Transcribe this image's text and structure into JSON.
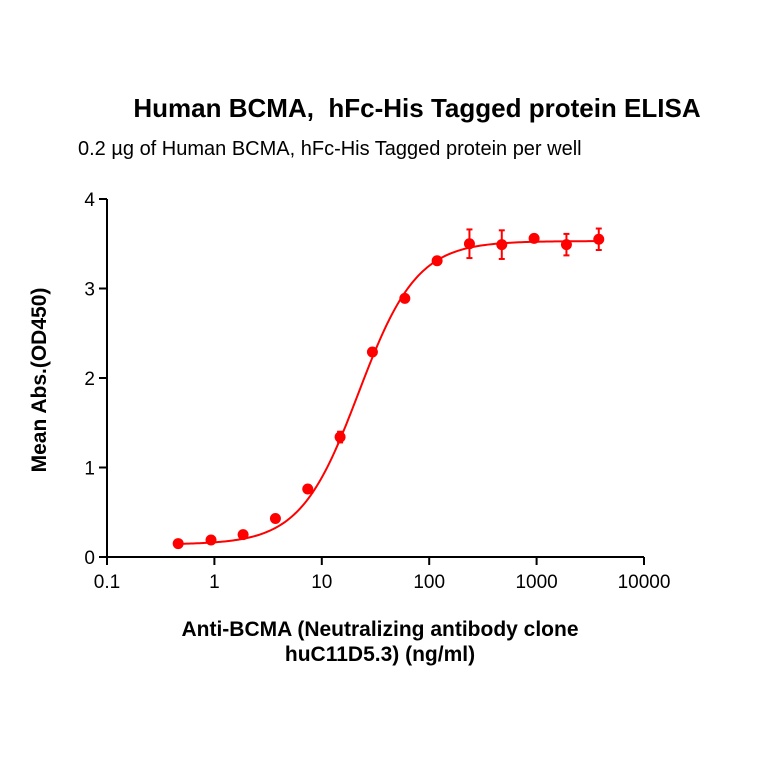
{
  "chart": {
    "title": "Human BCMA,  hFc-His Tagged protein ELISA",
    "subtitle": "0.2 µg of Human BCMA, hFc-His Tagged protein per well",
    "xlabel_line1": "Anti-BCMA (Neutralizing antibody clone",
    "xlabel_line2": "huC11D5.3) (ng/ml)",
    "ylabel": "Mean Abs.(OD450)"
  },
  "chart_data": {
    "type": "scatter",
    "title": "Human BCMA,  hFc-His Tagged protein ELISA",
    "subtitle": "0.2 µg of Human BCMA, hFc-His Tagged protein per well",
    "xlabel": "Anti-BCMA (Neutralizing antibody clone huC11D5.3) (ng/ml)",
    "ylabel": "Mean Abs.(OD450)",
    "xscale": "log",
    "xlim": [
      0.1,
      10000
    ],
    "ylim": [
      0,
      4
    ],
    "xticks": [
      "0.1",
      "1",
      "10",
      "100",
      "1000",
      "10000"
    ],
    "yticks": [
      "0",
      "1",
      "2",
      "3",
      "4"
    ],
    "grid": false,
    "legend": null,
    "color": "#ff0000",
    "series": [
      {
        "name": "Human BCMA, hFc-His Tagged protein",
        "x": [
          0.46,
          0.93,
          1.85,
          3.7,
          7.4,
          14.8,
          29.6,
          59.3,
          118.5,
          237,
          474,
          948,
          1896,
          3792
        ],
        "y": [
          0.15,
          0.19,
          0.25,
          0.43,
          0.76,
          1.34,
          2.29,
          2.89,
          3.31,
          3.5,
          3.49,
          3.56,
          3.49,
          3.55
        ],
        "error": [
          0.01,
          0.01,
          0.02,
          0.02,
          0.02,
          0.06,
          0.03,
          0.03,
          0.03,
          0.16,
          0.16,
          0.03,
          0.12,
          0.12
        ]
      }
    ],
    "fit": {
      "model": "4PL",
      "bottom": 0.14,
      "top": 3.53,
      "ec50": 22,
      "hill": 1.6
    }
  }
}
